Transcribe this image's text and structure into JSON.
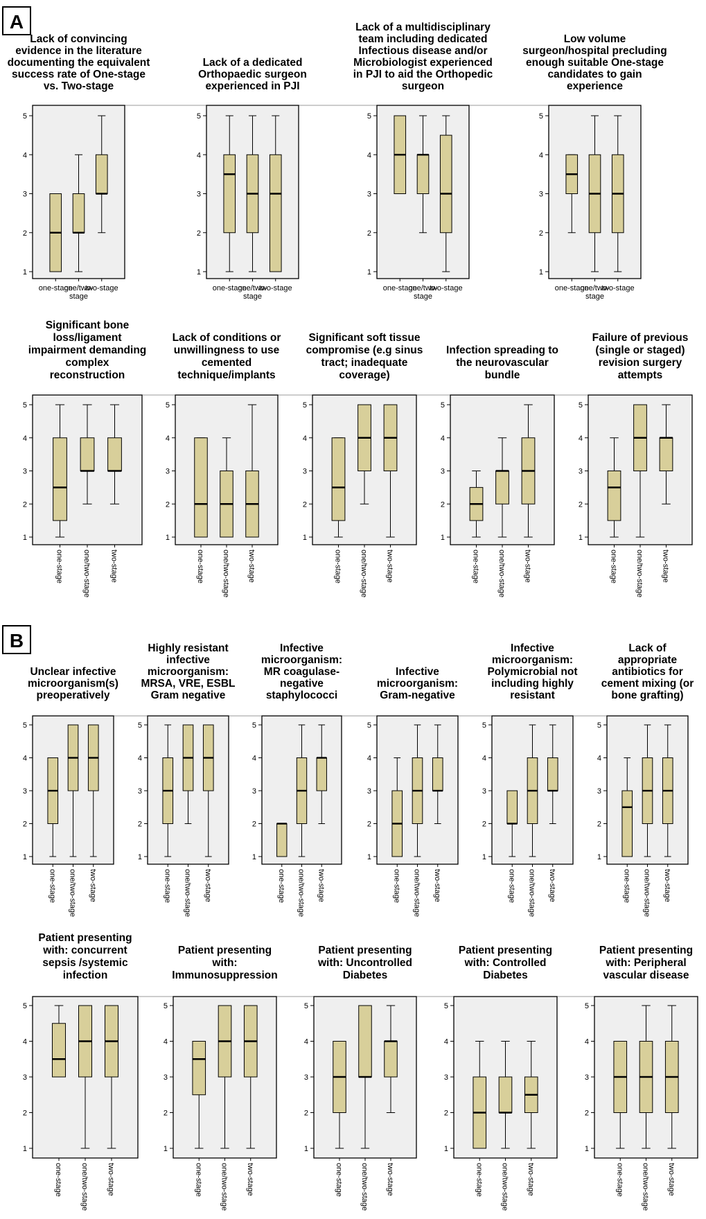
{
  "figure": {
    "colors": {
      "box_fill": "#d8cf9a",
      "box_stroke": "#000000",
      "plot_bg": "#efefef",
      "frame": "#000000"
    }
  },
  "chart_data": [
    {
      "panel": "A",
      "type": "boxplot",
      "ylim": [
        1,
        5
      ],
      "yticks": [
        1,
        2,
        3,
        4,
        5
      ],
      "categories": [
        "one-stage",
        "one/two-stage",
        "two-stage"
      ],
      "category_label_style": "horizontal",
      "charts": [
        {
          "title": [
            "Lack of convincing",
            "evidence in the literature",
            "documenting the equivalent",
            "success rate of One-stage",
            "vs. Two-stage"
          ],
          "boxes": [
            {
              "min": 1,
              "q1": 1,
              "median": 2,
              "q3": 3,
              "max": 3
            },
            {
              "min": 1,
              "q1": 2,
              "median": 2,
              "q3": 3,
              "max": 4
            },
            {
              "min": 2,
              "q1": 3,
              "median": 3,
              "q3": 4,
              "max": 5
            }
          ]
        },
        {
          "title": [
            "Lack of a dedicated",
            "Orthopaedic surgeon",
            "experienced in PJI"
          ],
          "boxes": [
            {
              "min": 1,
              "q1": 2,
              "median": 3.5,
              "q3": 4,
              "max": 5
            },
            {
              "min": 1,
              "q1": 2,
              "median": 3,
              "q3": 4,
              "max": 5
            },
            {
              "min": 1,
              "q1": 1,
              "median": 3,
              "q3": 4,
              "max": 5
            }
          ]
        },
        {
          "title": [
            "Lack of a multidisciplinary",
            "team including dedicated",
            "Infectious disease and/or",
            "Microbiologist experienced",
            "in PJI to aid the Orthopedic",
            "surgeon"
          ],
          "boxes": [
            {
              "min": 3,
              "q1": 3,
              "median": 4,
              "q3": 5,
              "max": 5
            },
            {
              "min": 2,
              "q1": 3,
              "median": 4,
              "q3": 4,
              "max": 5
            },
            {
              "min": 1,
              "q1": 2,
              "median": 3,
              "q3": 4.5,
              "max": 5
            }
          ]
        },
        {
          "title": [
            "Low volume",
            "surgeon/hospital precluding",
            "enough suitable One-stage",
            "candidates to gain",
            "experience"
          ],
          "boxes": [
            {
              "min": 2,
              "q1": 3,
              "median": 3.5,
              "q3": 4,
              "max": 4
            },
            {
              "min": 1,
              "q1": 2,
              "median": 3,
              "q3": 4,
              "max": 5
            },
            {
              "min": 1,
              "q1": 2,
              "median": 3,
              "q3": 4,
              "max": 5
            }
          ]
        }
      ]
    },
    {
      "panel": "A",
      "type": "boxplot",
      "ylim": [
        1,
        5
      ],
      "yticks": [
        1,
        2,
        3,
        4,
        5
      ],
      "categories": [
        "one-stage",
        "one/two-stage",
        "two-stage"
      ],
      "category_label_style": "vertical",
      "charts": [
        {
          "title": [
            "Significant bone",
            "loss/ligament",
            "impairment demanding",
            "complex",
            "reconstruction"
          ],
          "boxes": [
            {
              "min": 1,
              "q1": 1.5,
              "median": 2.5,
              "q3": 4,
              "max": 5
            },
            {
              "min": 2,
              "q1": 3,
              "median": 3,
              "q3": 4,
              "max": 5
            },
            {
              "min": 2,
              "q1": 3,
              "median": 3,
              "q3": 4,
              "max": 5
            }
          ]
        },
        {
          "title": [
            "Lack of conditions or",
            "unwillingness to use",
            "cemented",
            "technique/implants"
          ],
          "boxes": [
            {
              "min": 1,
              "q1": 1,
              "median": 2,
              "q3": 4,
              "max": 4
            },
            {
              "min": 1,
              "q1": 1,
              "median": 2,
              "q3": 3,
              "max": 4
            },
            {
              "min": 1,
              "q1": 1,
              "median": 2,
              "q3": 3,
              "max": 5
            }
          ]
        },
        {
          "title": [
            "Significant soft tissue",
            "compromise (e.g sinus",
            "tract; inadequate",
            "coverage)"
          ],
          "boxes": [
            {
              "min": 1,
              "q1": 1.5,
              "median": 2.5,
              "q3": 4,
              "max": 4
            },
            {
              "min": 2,
              "q1": 3,
              "median": 4,
              "q3": 5,
              "max": 5
            },
            {
              "min": 1,
              "q1": 3,
              "median": 4,
              "q3": 5,
              "max": 5
            }
          ]
        },
        {
          "title": [
            "Infection spreading to",
            "the neurovascular",
            "bundle"
          ],
          "boxes": [
            {
              "min": 1,
              "q1": 1.5,
              "median": 2,
              "q3": 2.5,
              "max": 3
            },
            {
              "min": 1,
              "q1": 2,
              "median": 3,
              "q3": 3,
              "max": 4
            },
            {
              "min": 1,
              "q1": 2,
              "median": 3,
              "q3": 4,
              "max": 5
            }
          ]
        },
        {
          "title": [
            "Failure of previous",
            "(single or staged)",
            "revision surgery",
            "attempts"
          ],
          "boxes": [
            {
              "min": 1,
              "q1": 1.5,
              "median": 2.5,
              "q3": 3,
              "max": 4
            },
            {
              "min": 1,
              "q1": 3,
              "median": 4,
              "q3": 5,
              "max": 5
            },
            {
              "min": 2,
              "q1": 3,
              "median": 4,
              "q3": 4,
              "max": 5
            }
          ]
        }
      ]
    },
    {
      "panel": "B",
      "type": "boxplot",
      "ylim": [
        1,
        5
      ],
      "yticks": [
        1,
        2,
        3,
        4,
        5
      ],
      "categories": [
        "one-stage",
        "one/two-stage",
        "two-stage"
      ],
      "category_label_style": "vertical",
      "charts": [
        {
          "title": [
            "Unclear infective",
            "microorganism(s)",
            "preoperatively"
          ],
          "boxes": [
            {
              "min": 1,
              "q1": 2,
              "median": 3,
              "q3": 4,
              "max": 4
            },
            {
              "min": 1,
              "q1": 3,
              "median": 4,
              "q3": 5,
              "max": 5
            },
            {
              "min": 1,
              "q1": 3,
              "median": 4,
              "q3": 5,
              "max": 5
            }
          ]
        },
        {
          "title": [
            "Highly resistant",
            "infective",
            "microorganism:",
            "MRSA, VRE, ESBL",
            "Gram negative"
          ],
          "boxes": [
            {
              "min": 1,
              "q1": 2,
              "median": 3,
              "q3": 4,
              "max": 5
            },
            {
              "min": 2,
              "q1": 3,
              "median": 4,
              "q3": 5,
              "max": 5
            },
            {
              "min": 1,
              "q1": 3,
              "median": 4,
              "q3": 5,
              "max": 5
            }
          ]
        },
        {
          "title": [
            "Infective",
            "microorganism:",
            "MR coagulase-",
            "negative",
            "staphylococci"
          ],
          "boxes": [
            {
              "min": 1,
              "q1": 1,
              "median": 2,
              "q3": 2,
              "max": 2
            },
            {
              "min": 1,
              "q1": 2,
              "median": 3,
              "q3": 4,
              "max": 5
            },
            {
              "min": 2,
              "q1": 3,
              "median": 4,
              "q3": 4,
              "max": 5
            }
          ]
        },
        {
          "title": [
            "Infective",
            "microorganism:",
            "Gram-negative"
          ],
          "boxes": [
            {
              "min": 1,
              "q1": 1,
              "median": 2,
              "q3": 3,
              "max": 4
            },
            {
              "min": 1,
              "q1": 2,
              "median": 3,
              "q3": 4,
              "max": 5
            },
            {
              "min": 2,
              "q1": 3,
              "median": 3,
              "q3": 4,
              "max": 5
            }
          ]
        },
        {
          "title": [
            "Infective",
            "microorganism:",
            "Polymicrobial not",
            "including highly",
            "resistant"
          ],
          "boxes": [
            {
              "min": 1,
              "q1": 2,
              "median": 2,
              "q3": 3,
              "max": 3
            },
            {
              "min": 1,
              "q1": 2,
              "median": 3,
              "q3": 4,
              "max": 5
            },
            {
              "min": 2,
              "q1": 3,
              "median": 3,
              "q3": 4,
              "max": 5
            }
          ]
        },
        {
          "title": [
            "Lack of",
            "appropriate",
            "antibiotics for",
            "cement mixing (or",
            "bone grafting)"
          ],
          "boxes": [
            {
              "min": 1,
              "q1": 1,
              "median": 2.5,
              "q3": 3,
              "max": 4
            },
            {
              "min": 1,
              "q1": 2,
              "median": 3,
              "q3": 4,
              "max": 5
            },
            {
              "min": 1,
              "q1": 2,
              "median": 3,
              "q3": 4,
              "max": 5
            }
          ]
        }
      ]
    },
    {
      "panel": "B",
      "type": "boxplot",
      "ylim": [
        1,
        5
      ],
      "yticks": [
        1,
        2,
        3,
        4,
        5
      ],
      "categories": [
        "one-stage",
        "one/two-stage",
        "two-stage"
      ],
      "category_label_style": "vertical",
      "charts": [
        {
          "title": [
            "Patient presenting",
            "with: concurrent",
            "sepsis /systemic",
            "infection"
          ],
          "boxes": [
            {
              "min": 3,
              "q1": 3,
              "median": 3.5,
              "q3": 4.5,
              "max": 5
            },
            {
              "min": 1,
              "q1": 3,
              "median": 4,
              "q3": 5,
              "max": 5
            },
            {
              "min": 1,
              "q1": 3,
              "median": 4,
              "q3": 5,
              "max": 5
            }
          ]
        },
        {
          "title": [
            "Patient presenting",
            "with:",
            "Immunosuppression"
          ],
          "boxes": [
            {
              "min": 1,
              "q1": 2.5,
              "median": 3.5,
              "q3": 4,
              "max": 4
            },
            {
              "min": 1,
              "q1": 3,
              "median": 4,
              "q3": 5,
              "max": 5
            },
            {
              "min": 1,
              "q1": 3,
              "median": 4,
              "q3": 5,
              "max": 5
            }
          ]
        },
        {
          "title": [
            "Patient presenting",
            "with: Uncontrolled",
            "Diabetes"
          ],
          "boxes": [
            {
              "min": 1,
              "q1": 2,
              "median": 3,
              "q3": 4,
              "max": 4
            },
            {
              "min": 1,
              "q1": 3,
              "median": 3,
              "q3": 5,
              "max": 5
            },
            {
              "min": 2,
              "q1": 3,
              "median": 4,
              "q3": 4,
              "max": 5
            }
          ]
        },
        {
          "title": [
            "Patient presenting",
            "with: Controlled",
            "Diabetes"
          ],
          "boxes": [
            {
              "min": 1,
              "q1": 1,
              "median": 2,
              "q3": 3,
              "max": 4
            },
            {
              "min": 1,
              "q1": 2,
              "median": 2,
              "q3": 3,
              "max": 4
            },
            {
              "min": 1,
              "q1": 2,
              "median": 2.5,
              "q3": 3,
              "max": 4
            }
          ]
        },
        {
          "title": [
            "Patient presenting",
            "with: Peripheral",
            "vascular disease"
          ],
          "boxes": [
            {
              "min": 1,
              "q1": 2,
              "median": 3,
              "q3": 4,
              "max": 4
            },
            {
              "min": 1,
              "q1": 2,
              "median": 3,
              "q3": 4,
              "max": 5
            },
            {
              "min": 1,
              "q1": 2,
              "median": 3,
              "q3": 4,
              "max": 5
            }
          ]
        }
      ]
    }
  ]
}
